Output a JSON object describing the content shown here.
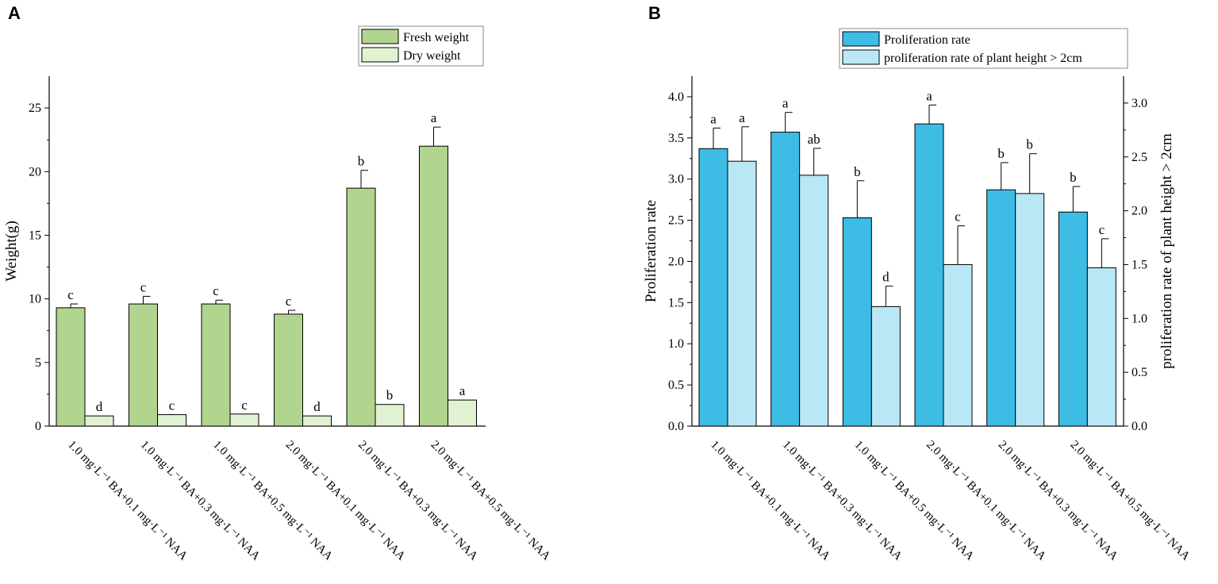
{
  "panels": {
    "A": {
      "label": "A"
    },
    "B": {
      "label": "B"
    }
  },
  "chart_data": [
    {
      "id": "A",
      "type": "bar",
      "title": "",
      "ylabel": "Weight(g)",
      "xlabel": "",
      "ylim": [
        0,
        27.5
      ],
      "yticks": [
        0,
        5,
        10,
        15,
        20,
        25
      ],
      "categories": [
        "1.0 mg·L⁻¹ BA+0.1 mg·L⁻¹ NAA",
        "1.0 mg·L⁻¹ BA+0.3 mg·L⁻¹ NAA",
        "1.0 mg·L⁻¹ BA+0.5 mg·L⁻¹ NAA",
        "2.0 mg·L⁻¹ BA+0.1 mg·L⁻¹ NAA",
        "2.0 mg·L⁻¹ BA+0.3 mg·L⁻¹ NAA",
        "2.0 mg·L⁻¹ BA+0.5 mg·L⁻¹ NAA"
      ],
      "legend_position": "top-right",
      "series": [
        {
          "name": "Fresh weight",
          "color": "#b1d48f",
          "values": [
            9.3,
            9.6,
            9.6,
            8.8,
            18.7,
            22.0
          ],
          "errors": [
            0.3,
            0.6,
            0.3,
            0.3,
            1.4,
            1.5
          ],
          "letters": [
            "c",
            "c",
            "c",
            "c",
            "b",
            "a"
          ]
        },
        {
          "name": "Dry weight",
          "color": "#e1f2d3",
          "values": [
            0.8,
            0.9,
            0.95,
            0.8,
            1.7,
            2.05
          ],
          "errors": [
            0,
            0,
            0,
            0,
            0,
            0
          ],
          "letters": [
            "d",
            "c",
            "c",
            "d",
            "b",
            "a"
          ]
        }
      ]
    },
    {
      "id": "B",
      "type": "bar",
      "title": "",
      "ylabel": "Proliferation rate",
      "ylabel_right": "proliferation rate of plant height > 2cm",
      "xlabel": "",
      "ylim": [
        0,
        4.25
      ],
      "ylim_right": [
        0,
        3.25
      ],
      "yticks": [
        0.0,
        0.5,
        1.0,
        1.5,
        2.0,
        2.5,
        3.0,
        3.5,
        4.0
      ],
      "yticks_right": [
        0.0,
        0.5,
        1.0,
        1.5,
        2.0,
        2.5,
        3.0
      ],
      "categories": [
        "1.0 mg·L⁻¹ BA+0.1 mg·L⁻¹ NAA",
        "1.0 mg·L⁻¹ BA+0.3 mg·L⁻¹ NAA",
        "1.0 mg·L⁻¹ BA+0.5 mg·L⁻¹ NAA",
        "2.0 mg·L⁻¹ BA+0.1 mg·L⁻¹ NAA",
        "2.0 mg·L⁻¹ BA+0.3 mg·L⁻¹ NAA",
        "2.0 mg·L⁻¹ BA+0.5 mg·L⁻¹ NAA"
      ],
      "legend_position": "top-right",
      "series": [
        {
          "name": "Proliferation rate",
          "axis": "left",
          "color": "#3dbce6",
          "values": [
            3.37,
            3.57,
            2.53,
            3.67,
            2.87,
            2.6
          ],
          "errors": [
            0.25,
            0.24,
            0.45,
            0.23,
            0.33,
            0.31
          ],
          "letters": [
            "a",
            "a",
            "b",
            "a",
            "b",
            "b"
          ]
        },
        {
          "name": "proliferation rate of plant height > 2cm",
          "axis": "right",
          "color": "#b9e7f6",
          "values": [
            2.46,
            2.33,
            1.11,
            1.5,
            2.16,
            1.47
          ],
          "errors": [
            0.32,
            0.25,
            0.19,
            0.36,
            0.37,
            0.27
          ],
          "letters": [
            "a",
            "ab",
            "d",
            "c",
            "b",
            "c"
          ]
        }
      ]
    }
  ]
}
